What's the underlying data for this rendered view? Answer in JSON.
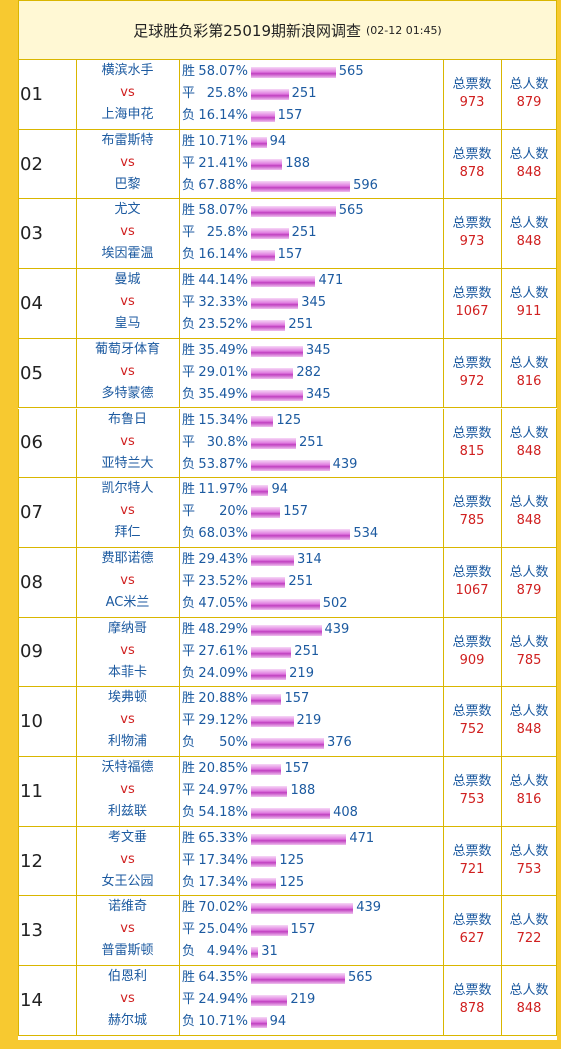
{
  "header": {
    "title": "足球胜负彩第25019期新浪网调查",
    "time": "(02-12 01:45)"
  },
  "labels": {
    "win": "胜",
    "draw": "平",
    "loss": "负",
    "vs": "vs",
    "total_votes": "总票数",
    "total_people": "总人数"
  },
  "matches": [
    {
      "no": "01",
      "home": "横滨水手",
      "away": "上海申花",
      "outcomes": [
        {
          "pct": 58.07,
          "pct_label": "58.07%",
          "count": 565
        },
        {
          "pct": 25.8,
          "pct_label": "25.8%",
          "count": 251
        },
        {
          "pct": 16.14,
          "pct_label": "16.14%",
          "count": 157
        }
      ],
      "total_votes": 973,
      "total_people": 879
    },
    {
      "no": "02",
      "home": "布雷斯特",
      "away": "巴黎",
      "outcomes": [
        {
          "pct": 10.71,
          "pct_label": "10.71%",
          "count": 94
        },
        {
          "pct": 21.41,
          "pct_label": "21.41%",
          "count": 188
        },
        {
          "pct": 67.88,
          "pct_label": "67.88%",
          "count": 596
        }
      ],
      "total_votes": 878,
      "total_people": 848
    },
    {
      "no": "03",
      "home": "尤文",
      "away": "埃因霍温",
      "outcomes": [
        {
          "pct": 58.07,
          "pct_label": "58.07%",
          "count": 565
        },
        {
          "pct": 25.8,
          "pct_label": "25.8%",
          "count": 251
        },
        {
          "pct": 16.14,
          "pct_label": "16.14%",
          "count": 157
        }
      ],
      "total_votes": 973,
      "total_people": 848
    },
    {
      "no": "04",
      "home": "曼城",
      "away": "皇马",
      "outcomes": [
        {
          "pct": 44.14,
          "pct_label": "44.14%",
          "count": 471
        },
        {
          "pct": 32.33,
          "pct_label": "32.33%",
          "count": 345
        },
        {
          "pct": 23.52,
          "pct_label": "23.52%",
          "count": 251
        }
      ],
      "total_votes": 1067,
      "total_people": 911
    },
    {
      "no": "05",
      "home": "葡萄牙体育",
      "away": "多特蒙德",
      "outcomes": [
        {
          "pct": 35.49,
          "pct_label": "35.49%",
          "count": 345
        },
        {
          "pct": 29.01,
          "pct_label": "29.01%",
          "count": 282
        },
        {
          "pct": 35.49,
          "pct_label": "35.49%",
          "count": 345
        }
      ],
      "total_votes": 972,
      "total_people": 816
    },
    {
      "no": "06",
      "home": "布鲁日",
      "away": "亚特兰大",
      "outcomes": [
        {
          "pct": 15.34,
          "pct_label": "15.34%",
          "count": 125
        },
        {
          "pct": 30.8,
          "pct_label": "30.8%",
          "count": 251
        },
        {
          "pct": 53.87,
          "pct_label": "53.87%",
          "count": 439
        }
      ],
      "total_votes": 815,
      "total_people": 848
    },
    {
      "no": "07",
      "home": "凯尔特人",
      "away": "拜仁",
      "outcomes": [
        {
          "pct": 11.97,
          "pct_label": "11.97%",
          "count": 94
        },
        {
          "pct": 20,
          "pct_label": "20%",
          "count": 157
        },
        {
          "pct": 68.03,
          "pct_label": "68.03%",
          "count": 534
        }
      ],
      "total_votes": 785,
      "total_people": 848
    },
    {
      "no": "08",
      "home": "费耶诺德",
      "away": "AC米兰",
      "outcomes": [
        {
          "pct": 29.43,
          "pct_label": "29.43%",
          "count": 314
        },
        {
          "pct": 23.52,
          "pct_label": "23.52%",
          "count": 251
        },
        {
          "pct": 47.05,
          "pct_label": "47.05%",
          "count": 502
        }
      ],
      "total_votes": 1067,
      "total_people": 879
    },
    {
      "no": "09",
      "home": "摩纳哥",
      "away": "本菲卡",
      "outcomes": [
        {
          "pct": 48.29,
          "pct_label": "48.29%",
          "count": 439
        },
        {
          "pct": 27.61,
          "pct_label": "27.61%",
          "count": 251
        },
        {
          "pct": 24.09,
          "pct_label": "24.09%",
          "count": 219
        }
      ],
      "total_votes": 909,
      "total_people": 785
    },
    {
      "no": "10",
      "home": "埃弗顿",
      "away": "利物浦",
      "outcomes": [
        {
          "pct": 20.88,
          "pct_label": "20.88%",
          "count": 157
        },
        {
          "pct": 29.12,
          "pct_label": "29.12%",
          "count": 219
        },
        {
          "pct": 50,
          "pct_label": "50%",
          "count": 376
        }
      ],
      "total_votes": 752,
      "total_people": 848
    },
    {
      "no": "11",
      "home": "沃特福德",
      "away": "利兹联",
      "outcomes": [
        {
          "pct": 20.85,
          "pct_label": "20.85%",
          "count": 157
        },
        {
          "pct": 24.97,
          "pct_label": "24.97%",
          "count": 188
        },
        {
          "pct": 54.18,
          "pct_label": "54.18%",
          "count": 408
        }
      ],
      "total_votes": 753,
      "total_people": 816
    },
    {
      "no": "12",
      "home": "考文垂",
      "away": "女王公园",
      "outcomes": [
        {
          "pct": 65.33,
          "pct_label": "65.33%",
          "count": 471
        },
        {
          "pct": 17.34,
          "pct_label": "17.34%",
          "count": 125
        },
        {
          "pct": 17.34,
          "pct_label": "17.34%",
          "count": 125
        }
      ],
      "total_votes": 721,
      "total_people": 753
    },
    {
      "no": "13",
      "home": "诺维奇",
      "away": "普雷斯顿",
      "outcomes": [
        {
          "pct": 70.02,
          "pct_label": "70.02%",
          "count": 439
        },
        {
          "pct": 25.04,
          "pct_label": "25.04%",
          "count": 157
        },
        {
          "pct": 4.94,
          "pct_label": "4.94%",
          "count": 31
        }
      ],
      "total_votes": 627,
      "total_people": 722
    },
    {
      "no": "14",
      "home": "伯恩利",
      "away": "赫尔城",
      "outcomes": [
        {
          "pct": 64.35,
          "pct_label": "64.35%",
          "count": 565
        },
        {
          "pct": 24.94,
          "pct_label": "24.94%",
          "count": 219
        },
        {
          "pct": 10.71,
          "pct_label": "10.71%",
          "count": 94
        }
      ],
      "total_votes": 878,
      "total_people": 848
    }
  ]
}
